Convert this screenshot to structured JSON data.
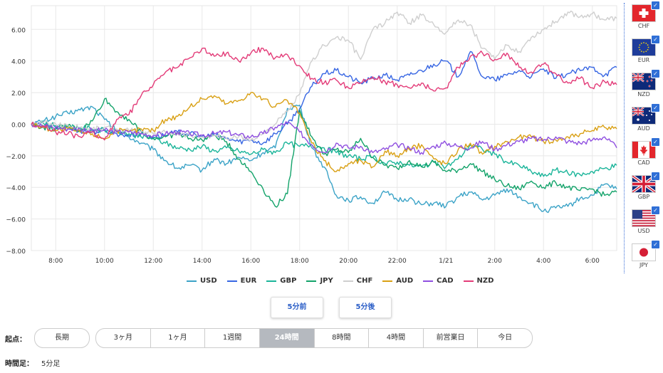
{
  "chart_data": {
    "type": "line",
    "title": "",
    "xlabel": "",
    "ylabel": "",
    "ylim": [
      -8,
      7.5
    ],
    "x_range": [
      0,
      24
    ],
    "yticks": [
      6,
      4,
      2,
      0,
      -2,
      -4,
      -6,
      -8
    ],
    "ytick_labels": [
      "6.00",
      "4.00",
      "2.00",
      "0.00",
      "−2.00",
      "−4.00",
      "−6.00",
      "−8.00"
    ],
    "xticks": [
      1,
      3,
      5,
      7,
      9,
      11,
      13,
      15,
      17,
      19,
      21,
      23
    ],
    "xtick_labels": [
      "8:00",
      "10:00",
      "12:00",
      "14:00",
      "16:00",
      "18:00",
      "20:00",
      "22:00",
      "1/21",
      "2:00",
      "4:00",
      "6:00"
    ],
    "series": [
      {
        "name": "USD",
        "color": "#3ba3c7",
        "x": [
          0,
          0.5,
          1,
          1.5,
          2,
          2.5,
          3,
          3.5,
          4,
          4.5,
          5,
          5.5,
          6,
          6.5,
          7,
          7.5,
          8,
          8.5,
          9,
          9.5,
          10,
          10.5,
          11,
          11.5,
          12,
          12.5,
          13,
          13.5,
          14,
          14.5,
          15,
          15.5,
          16,
          16.5,
          17,
          17.5,
          18,
          18.5,
          19,
          19.5,
          20,
          20.5,
          21,
          21.5,
          22,
          22.5,
          23,
          23.5,
          24
        ],
        "values": [
          0,
          0.2,
          0.5,
          0.7,
          0.9,
          1.1,
          0.3,
          -0.4,
          -0.8,
          -1.2,
          -1.6,
          -2.3,
          -2.8,
          -2.6,
          -2.9,
          -2.2,
          -2.5,
          -2.1,
          -2.3,
          -1.8,
          -1.5,
          1.0,
          1.2,
          -1.5,
          -2.7,
          -4.5,
          -4.8,
          -4.6,
          -5.0,
          -4.3,
          -4.8,
          -4.7,
          -5.1,
          -5.0,
          -5.2,
          -4.6,
          -4.3,
          -4.8,
          -4.5,
          -4.1,
          -4.6,
          -5.0,
          -5.5,
          -5.3,
          -5.2,
          -4.7,
          -4.5,
          -3.8,
          -4.1
        ]
      },
      {
        "name": "EUR",
        "color": "#3766e3",
        "x": [
          0,
          0.5,
          1,
          1.5,
          2,
          2.5,
          3,
          3.5,
          4,
          4.5,
          5,
          5.5,
          6,
          6.5,
          7,
          7.5,
          8,
          8.5,
          9,
          9.5,
          10,
          10.5,
          11,
          11.5,
          12,
          12.5,
          13,
          13.5,
          14,
          14.5,
          15,
          15.5,
          16,
          16.5,
          17,
          17.5,
          18,
          18.5,
          19,
          19.5,
          20,
          20.5,
          21,
          21.5,
          22,
          22.5,
          23,
          23.5,
          24
        ],
        "values": [
          0,
          -0.1,
          -0.2,
          -0.3,
          -0.4,
          -0.5,
          -0.4,
          -0.6,
          -0.7,
          -0.6,
          -0.8,
          -0.7,
          -0.5,
          -0.6,
          -0.8,
          -0.7,
          -0.9,
          -1.1,
          -1.0,
          -1.2,
          -0.6,
          0,
          1.0,
          2.4,
          3.2,
          3.4,
          3.0,
          2.6,
          2.9,
          3.1,
          2.8,
          3.1,
          3.4,
          3.8,
          4.0,
          3.0,
          4.6,
          3.0,
          2.8,
          3.1,
          3.4,
          3.0,
          3.5,
          2.9,
          3.2,
          3.4,
          3.6,
          3.1,
          3.6
        ]
      },
      {
        "name": "GBP",
        "color": "#1bb59a",
        "x": [
          0,
          0.5,
          1,
          1.5,
          2,
          2.5,
          3,
          3.5,
          4,
          4.5,
          5,
          5.5,
          6,
          6.5,
          7,
          7.5,
          8,
          8.5,
          9,
          9.5,
          10,
          10.5,
          11,
          11.5,
          12,
          12.5,
          13,
          13.5,
          14,
          14.5,
          15,
          15.5,
          16,
          16.5,
          17,
          17.5,
          18,
          18.5,
          19,
          19.5,
          20,
          20.5,
          21,
          21.5,
          22,
          22.5,
          23,
          23.5,
          24
        ],
        "values": [
          0,
          0.05,
          -0.1,
          -0.15,
          -0.2,
          -0.3,
          -0.4,
          -0.5,
          -0.6,
          -0.8,
          -0.9,
          -1.2,
          -1.5,
          -1.6,
          -1.4,
          -1.7,
          -1.5,
          -1.7,
          -1.9,
          -1.6,
          -1.8,
          -1.2,
          -1.4,
          -1.3,
          -1.5,
          -1.8,
          -2.0,
          -2.2,
          -2.1,
          -2.5,
          -2.4,
          -2.6,
          -2.7,
          -2.4,
          -2.7,
          -2.2,
          -1.3,
          -1.6,
          -1.9,
          -2.4,
          -2.6,
          -3.0,
          -3.3,
          -2.9,
          -3.1,
          -3.2,
          -3.0,
          -2.8,
          -2.6
        ]
      },
      {
        "name": "JPY",
        "color": "#13a36a",
        "x": [
          0,
          0.5,
          1,
          1.5,
          2,
          2.5,
          3,
          3.5,
          4,
          4.5,
          5,
          5.5,
          6,
          6.5,
          7,
          7.5,
          8,
          8.5,
          9,
          9.5,
          10,
          10.5,
          11,
          11.5,
          12,
          12.5,
          13,
          13.5,
          14,
          14.5,
          15,
          15.5,
          16,
          16.5,
          17,
          17.5,
          18,
          18.5,
          19,
          19.5,
          20,
          20.5,
          21,
          21.5,
          22,
          22.5,
          23,
          23.5,
          24
        ],
        "values": [
          0,
          -0.2,
          -0.3,
          -0.1,
          -0.4,
          0.2,
          1.6,
          0.8,
          0.3,
          -0.5,
          -0.9,
          -0.8,
          -0.6,
          -0.9,
          -1.0,
          -0.7,
          -1.1,
          -2.2,
          -3.0,
          -4.1,
          -5.2,
          -4.4,
          0.9,
          -0.8,
          -1.9,
          -1.6,
          -1.8,
          -0.9,
          -2.1,
          -2.6,
          -2.8,
          -2.3,
          -2.7,
          -2.4,
          -3.0,
          -2.9,
          -2.5,
          -3.0,
          -3.5,
          -3.9,
          -4.1,
          -3.6,
          -4.0,
          -3.7,
          -4.0,
          -4.2,
          -4.1,
          -4.5,
          -4.3
        ]
      },
      {
        "name": "CHF",
        "color": "#cfcfcf",
        "x": [
          0,
          0.5,
          1,
          1.5,
          2,
          2.5,
          3,
          3.5,
          4,
          4.5,
          5,
          5.5,
          6,
          6.5,
          7,
          7.5,
          8,
          8.5,
          9,
          9.5,
          10,
          10.5,
          11,
          11.5,
          12,
          12.5,
          13,
          13.5,
          14,
          14.5,
          15,
          15.5,
          16,
          16.5,
          17,
          17.5,
          18,
          18.5,
          19,
          19.5,
          20,
          20.5,
          21,
          21.5,
          22,
          22.5,
          23,
          23.5,
          24
        ],
        "values": [
          0,
          0.1,
          0.0,
          -0.1,
          -0.2,
          -0.3,
          -0.2,
          -0.3,
          -0.4,
          -0.5,
          -0.6,
          -0.5,
          -0.6,
          -0.7,
          -0.8,
          -0.7,
          -0.9,
          -0.8,
          -1.0,
          -0.6,
          0.0,
          0.8,
          1.9,
          4.0,
          5.0,
          5.5,
          5.3,
          4.1,
          6.0,
          6.4,
          7.1,
          6.4,
          6.9,
          6.3,
          5.8,
          6.6,
          6.3,
          4.8,
          4.1,
          5.0,
          4.6,
          5.5,
          6.0,
          6.5,
          7.1,
          6.8,
          7.0,
          6.6,
          6.7
        ]
      },
      {
        "name": "AUD",
        "color": "#d9a014",
        "x": [
          0,
          0.5,
          1,
          1.5,
          2,
          2.5,
          3,
          3.5,
          4,
          4.5,
          5,
          5.5,
          6,
          6.5,
          7,
          7.5,
          8,
          8.5,
          9,
          9.5,
          10,
          10.5,
          11,
          11.5,
          12,
          12.5,
          13,
          13.5,
          14,
          14.5,
          15,
          15.5,
          16,
          16.5,
          17,
          17.5,
          18,
          18.5,
          19,
          19.5,
          20,
          20.5,
          21,
          21.5,
          22,
          22.5,
          23,
          23.5,
          24
        ],
        "values": [
          0,
          -0.2,
          -0.4,
          -0.3,
          -0.5,
          -0.6,
          -0.9,
          -0.4,
          -0.5,
          -0.3,
          -0.4,
          0.3,
          0.5,
          1.1,
          1.6,
          1.8,
          1.3,
          1.5,
          2.0,
          1.6,
          1.1,
          1.5,
          0.7,
          -1.2,
          -2.3,
          -3.0,
          -2.5,
          -2.3,
          -2.7,
          -1.7,
          -2.0,
          -1.6,
          -1.3,
          -2.2,
          -2.5,
          -1.6,
          -1.2,
          -1.9,
          -1.4,
          -1.1,
          -0.8,
          -0.8,
          -1.1,
          -1.0,
          -0.8,
          -0.6,
          -0.4,
          -0.2,
          -0.3
        ]
      },
      {
        "name": "CAD",
        "color": "#8f4fe0",
        "x": [
          0,
          0.5,
          1,
          1.5,
          2,
          2.5,
          3,
          3.5,
          4,
          4.5,
          5,
          5.5,
          6,
          6.5,
          7,
          7.5,
          8,
          8.5,
          9,
          9.5,
          10,
          10.5,
          11,
          11.5,
          12,
          12.5,
          13,
          13.5,
          14,
          14.5,
          15,
          15.5,
          16,
          16.5,
          17,
          17.5,
          18,
          18.5,
          19,
          19.5,
          20,
          20.5,
          21,
          21.5,
          22,
          22.5,
          23,
          23.5,
          24
        ],
        "values": [
          0,
          -0.1,
          -0.2,
          -0.3,
          -0.3,
          -0.4,
          -0.4,
          -0.5,
          -0.5,
          -0.6,
          -0.7,
          -0.6,
          -0.5,
          -0.6,
          -0.7,
          -0.6,
          -0.5,
          -0.7,
          -0.8,
          -0.6,
          -0.2,
          0.1,
          -0.5,
          -1.3,
          -1.8,
          -1.2,
          -1.5,
          -1.4,
          -1.8,
          -1.6,
          -1.3,
          -1.5,
          -1.8,
          -1.4,
          -1.2,
          -1.4,
          -1.5,
          -1.1,
          -1.6,
          -1.3,
          -1.1,
          -0.9,
          -1.0,
          -0.8,
          -1.1,
          -1.2,
          -1.0,
          -0.8,
          -1.5
        ]
      },
      {
        "name": "NZD",
        "color": "#e33b78",
        "x": [
          0,
          0.5,
          1,
          1.5,
          2,
          2.5,
          3,
          3.5,
          4,
          4.5,
          5,
          5.5,
          6,
          6.5,
          7,
          7.5,
          8,
          8.5,
          9,
          9.5,
          10,
          10.5,
          11,
          11.5,
          12,
          12.5,
          13,
          13.5,
          14,
          14.5,
          15,
          15.5,
          16,
          16.5,
          17,
          17.5,
          18,
          18.5,
          19,
          19.5,
          20,
          20.5,
          21,
          21.5,
          22,
          22.5,
          23,
          23.5,
          24
        ],
        "values": [
          0,
          -0.1,
          -0.5,
          -0.6,
          -0.8,
          -0.5,
          -1.0,
          0.3,
          0.6,
          1.8,
          2.5,
          3.3,
          3.6,
          4.2,
          4.8,
          4.3,
          4.5,
          4.0,
          4.5,
          4.8,
          4.2,
          4.4,
          3.7,
          2.9,
          2.6,
          2.8,
          2.3,
          2.6,
          3.0,
          2.7,
          2.5,
          2.3,
          2.6,
          2.1,
          2.3,
          3.6,
          4.3,
          4.5,
          4.1,
          4.5,
          3.6,
          3.3,
          3.8,
          3.2,
          2.6,
          2.9,
          2.3,
          2.7,
          2.5
        ]
      }
    ]
  },
  "flags": [
    {
      "code": "CHF"
    },
    {
      "code": "EUR"
    },
    {
      "code": "NZD"
    },
    {
      "code": "AUD"
    },
    {
      "code": "CAD"
    },
    {
      "code": "GBP"
    },
    {
      "code": "USD"
    },
    {
      "code": "JPY"
    }
  ],
  "nav": {
    "prev": "5分前",
    "next": "5分後"
  },
  "start": {
    "label": "起点：",
    "long_term": "長期",
    "options": [
      "3ヶ月",
      "1ヶ月",
      "1週間",
      "24時間",
      "8時間",
      "4時間",
      "前営業日",
      "今日"
    ],
    "selected": "24時間"
  },
  "timeframe": {
    "label": "時間足：",
    "value": "5分足"
  },
  "icons": {
    "check": "check-icon"
  }
}
